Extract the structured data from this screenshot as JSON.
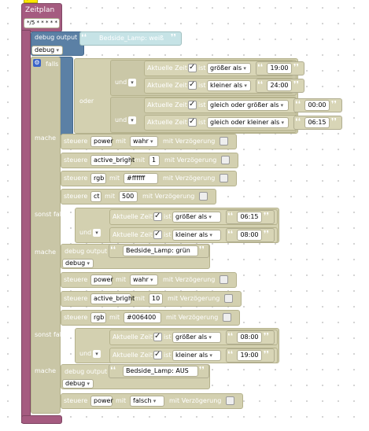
{
  "header": {
    "tag": "sprite"
  },
  "zeitplan": {
    "label": "Zeitplan",
    "cron": "*/5 * * * * *"
  },
  "debug1": {
    "label": "debug output",
    "text": "Bedside_Lamp: weiß",
    "level": "debug"
  },
  "falls": {
    "label": "falls",
    "gear": "gear-icon"
  },
  "or_block": {
    "oder": "oder",
    "und1": "und",
    "und2": "und"
  },
  "cond_labels": {
    "aktuelle_zeit": "Aktuelle Zeit",
    "ist": "ist",
    "check": "✓"
  },
  "cond": [
    {
      "op": "größer als",
      "time": "19:00"
    },
    {
      "op": "kleiner als",
      "time": "24:00"
    },
    {
      "op": "gleich oder größer als",
      "time": "00:00"
    },
    {
      "op": "gleich oder kleiner als",
      "time": "06:15"
    }
  ],
  "mache1": {
    "label": "mache",
    "rows": [
      {
        "steuere": "steuere",
        "dev": "power",
        "mit": "mit",
        "value": "wahr",
        "verz": "mit Verzögerung"
      },
      {
        "steuere": "steuere",
        "dev": "active_bright",
        "mit": "mit",
        "value": "1",
        "verz": "mit Verzögerung"
      },
      {
        "steuere": "steuere",
        "dev": "rgb",
        "mit": "mit",
        "value": "#ffffff",
        "verz": "mit Verzögerung"
      },
      {
        "steuere": "steuere",
        "dev": "ct",
        "mit": "mit",
        "value": "500",
        "verz": "mit Verzögerung"
      }
    ]
  },
  "sonst1": {
    "label": "sonst falls",
    "und": "und",
    "cond": [
      {
        "op": "größer als",
        "time": "06:15"
      },
      {
        "op": "kleiner als",
        "time": "08:00"
      }
    ]
  },
  "mache2": {
    "label": "mache",
    "debug": {
      "label": "debug output",
      "text": "Bedside_Lamp: grün",
      "level": "debug"
    },
    "rows": [
      {
        "steuere": "steuere",
        "dev": "power",
        "mit": "mit",
        "value": "wahr",
        "verz": "mit Verzögerung"
      },
      {
        "steuere": "steuere",
        "dev": "active_bright",
        "mit": "mit",
        "value": "10",
        "verz": "mit Verzögerung"
      },
      {
        "steuere": "steuere",
        "dev": "rgb",
        "mit": "mit",
        "value": "#006400",
        "verz": "mit Verzögerung"
      }
    ]
  },
  "sonst2": {
    "label": "sonst falls",
    "und": "und",
    "cond": [
      {
        "op": "größer als",
        "time": "08:00"
      },
      {
        "op": "kleiner als",
        "time": "19:00"
      }
    ]
  },
  "mache3": {
    "label": "mache",
    "debug": {
      "label": "debug output",
      "text": "Bedside_Lamp: AUS",
      "level": "debug"
    },
    "rows": [
      {
        "steuere": "steuere",
        "dev": "power",
        "mit": "mit",
        "value": "falsch",
        "verz": "mit Verzögerung"
      }
    ]
  },
  "colors": {
    "zeitplan": "#a55b80",
    "debug": "#5b80a5",
    "steuere": "#d3d0b0",
    "tag": "#ffe800"
  }
}
